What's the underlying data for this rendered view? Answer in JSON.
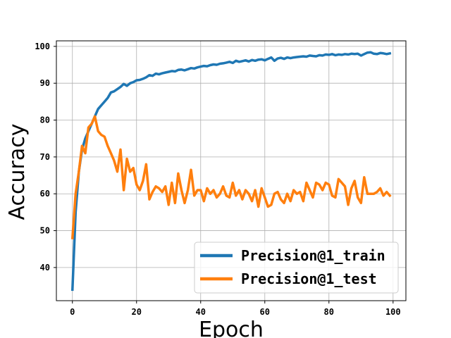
{
  "chart_data": {
    "type": "line",
    "title": "",
    "xlabel": "Epoch",
    "ylabel": "Accuracy",
    "xlim": [
      -5,
      104
    ],
    "ylim": [
      31,
      101.5
    ],
    "xticks": [
      0,
      20,
      40,
      60,
      80,
      100
    ],
    "yticks": [
      40,
      50,
      60,
      70,
      80,
      90,
      100
    ],
    "grid": true,
    "legend_position": "lower-right",
    "series": [
      {
        "name": "Precision@1_train",
        "color": "#1f77b4",
        "x": [
          0,
          1,
          2,
          3,
          4,
          5,
          6,
          7,
          8,
          9,
          10,
          11,
          12,
          13,
          14,
          15,
          16,
          17,
          18,
          19,
          20,
          21,
          22,
          23,
          24,
          25,
          26,
          27,
          28,
          29,
          30,
          31,
          32,
          33,
          34,
          35,
          36,
          37,
          38,
          39,
          40,
          41,
          42,
          43,
          44,
          45,
          46,
          47,
          48,
          49,
          50,
          51,
          52,
          53,
          54,
          55,
          56,
          57,
          58,
          59,
          60,
          61,
          62,
          63,
          64,
          65,
          66,
          67,
          68,
          69,
          70,
          71,
          72,
          73,
          74,
          75,
          76,
          77,
          78,
          79,
          80,
          81,
          82,
          83,
          84,
          85,
          86,
          87,
          88,
          89,
          90,
          91,
          92,
          93,
          94,
          95,
          96,
          97,
          98,
          99
        ],
        "values": [
          34,
          55,
          66,
          72,
          75,
          77,
          79,
          81,
          83,
          84,
          85,
          86,
          87.5,
          87.8,
          88.4,
          89,
          89.8,
          89.3,
          90,
          90.3,
          90.8,
          90.9,
          91.2,
          91.6,
          92.2,
          92,
          92.6,
          92.4,
          92.7,
          92.9,
          93.1,
          93.3,
          93.2,
          93.6,
          93.7,
          93.5,
          93.8,
          94.1,
          94,
          94.3,
          94.5,
          94.7,
          94.6,
          94.9,
          95.1,
          95,
          95.3,
          95.4,
          95.6,
          95.8,
          95.5,
          96.1,
          95.8,
          96,
          96.2,
          95.9,
          96.3,
          96.1,
          96.4,
          96.5,
          96.2,
          96.6,
          97,
          96.1,
          96.7,
          96.9,
          96.6,
          97,
          96.8,
          97,
          97.1,
          97.2,
          97.3,
          97.2,
          97.5,
          97.4,
          97.3,
          97.6,
          97.5,
          97.8,
          97.7,
          97.9,
          97.6,
          97.8,
          97.7,
          97.9,
          97.8,
          98,
          97.9,
          98,
          97.5,
          97.9,
          98.3,
          98.4,
          98,
          97.9,
          98.2,
          98.1,
          97.9,
          98.1
        ]
      },
      {
        "name": "Precision@1_test",
        "color": "#ff7f0e",
        "x": [
          0,
          1,
          2,
          3,
          4,
          5,
          6,
          7,
          8,
          9,
          10,
          11,
          12,
          13,
          14,
          15,
          16,
          17,
          18,
          19,
          20,
          21,
          22,
          23,
          24,
          25,
          26,
          27,
          28,
          29,
          30,
          31,
          32,
          33,
          34,
          35,
          36,
          37,
          38,
          39,
          40,
          41,
          42,
          43,
          44,
          45,
          46,
          47,
          48,
          49,
          50,
          51,
          52,
          53,
          54,
          55,
          56,
          57,
          58,
          59,
          60,
          61,
          62,
          63,
          64,
          65,
          66,
          67,
          68,
          69,
          70,
          71,
          72,
          73,
          74,
          75,
          76,
          77,
          78,
          79,
          80,
          81,
          82,
          83,
          84,
          85,
          86,
          87,
          88,
          89,
          90,
          91,
          92,
          93,
          94,
          95,
          96,
          97,
          98,
          99
        ],
        "values": [
          48,
          60,
          66,
          73,
          71,
          78,
          79,
          81,
          77,
          76,
          75.5,
          73,
          71,
          69,
          66,
          72,
          61,
          69.5,
          66,
          67,
          62.5,
          61,
          63.5,
          68,
          58.5,
          60.5,
          62,
          61.5,
          60.5,
          62,
          57,
          63,
          57.5,
          65.5,
          61,
          57.5,
          61,
          66.5,
          59.5,
          61,
          61,
          58,
          61.5,
          60,
          61,
          59,
          60,
          62,
          59.5,
          59,
          63,
          59.5,
          61,
          58.5,
          61,
          60,
          58,
          61,
          56.5,
          61.5,
          59,
          56.5,
          57,
          60,
          60.5,
          58.5,
          57.5,
          60,
          58,
          61,
          60,
          60.5,
          58,
          63,
          61,
          59,
          63,
          62.5,
          61,
          63,
          62.5,
          59.5,
          59,
          64,
          63,
          62,
          57,
          61.5,
          63.5,
          59,
          57.5,
          64.5,
          60,
          60,
          60,
          60.5,
          61.5,
          59.5,
          60.5,
          59.5
        ]
      }
    ]
  }
}
